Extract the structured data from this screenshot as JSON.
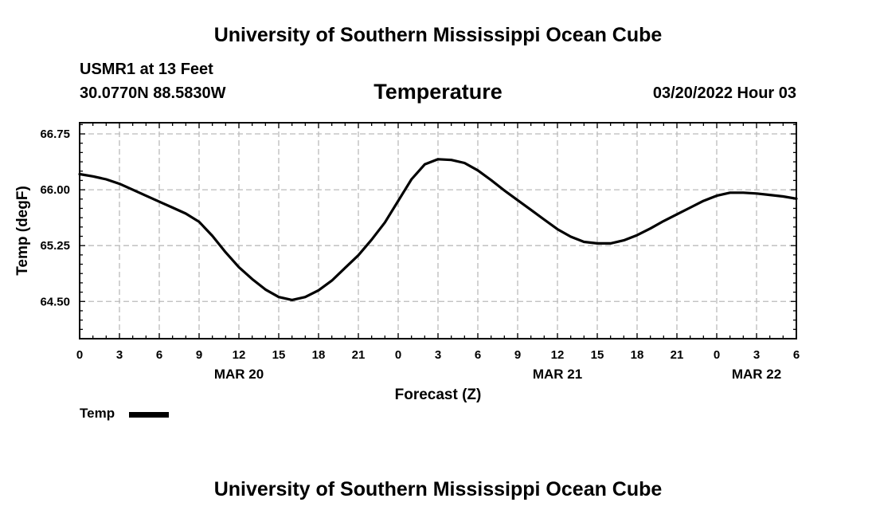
{
  "header": {
    "title": "University of Southern Mississippi Ocean Cube",
    "station": "USMR1 at 13 Feet",
    "coords": "30.0770N  88.5830W",
    "chart_title": "Temperature",
    "datetime": "03/20/2022 Hour 03"
  },
  "footer": {
    "title": "University of Southern Mississippi Ocean Cube"
  },
  "legend": {
    "label": "Temp",
    "color": "#000000"
  },
  "chart_data": {
    "type": "line",
    "title": "Temperature",
    "xlabel": "Forecast (Z)",
    "ylabel": "Temp (degF)",
    "xlim": [
      0,
      54
    ],
    "ylim": [
      64.0,
      66.9
    ],
    "x_ticks": [
      0,
      3,
      6,
      9,
      12,
      15,
      18,
      21,
      24,
      27,
      30,
      33,
      36,
      39,
      42,
      45,
      48,
      51,
      54
    ],
    "x_tick_labels": [
      "0",
      "3",
      "6",
      "9",
      "12",
      "15",
      "18",
      "21",
      "0",
      "3",
      "6",
      "9",
      "12",
      "15",
      "18",
      "21",
      "0",
      "3",
      "6"
    ],
    "date_labels": [
      {
        "x": 12,
        "label": "MAR 20"
      },
      {
        "x": 36,
        "label": "MAR 21"
      },
      {
        "x": 51,
        "label": "MAR 22"
      }
    ],
    "y_ticks": [
      64.5,
      65.25,
      66.0,
      66.75
    ],
    "y_tick_labels": [
      "64.50",
      "65.25",
      "66.00",
      "66.75"
    ],
    "grid": true,
    "series": [
      {
        "name": "Temp",
        "color": "#000000",
        "x": [
          0,
          1,
          2,
          3,
          4,
          5,
          6,
          7,
          8,
          9,
          10,
          11,
          12,
          13,
          14,
          15,
          16,
          17,
          18,
          19,
          20,
          21,
          22,
          23,
          24,
          25,
          26,
          27,
          28,
          29,
          30,
          31,
          32,
          33,
          34,
          35,
          36,
          37,
          38,
          39,
          40,
          41,
          42,
          43,
          44,
          45,
          46,
          47,
          48,
          49,
          50,
          51,
          52,
          53,
          54
        ],
        "y": [
          66.21,
          66.18,
          66.14,
          66.08,
          66.0,
          65.92,
          65.84,
          65.76,
          65.68,
          65.57,
          65.38,
          65.16,
          64.96,
          64.8,
          64.66,
          64.56,
          64.52,
          64.56,
          64.65,
          64.78,
          64.95,
          65.12,
          65.33,
          65.56,
          65.85,
          66.14,
          66.34,
          66.41,
          66.4,
          66.36,
          66.26,
          66.13,
          65.99,
          65.86,
          65.73,
          65.6,
          65.47,
          65.37,
          65.3,
          65.28,
          65.28,
          65.32,
          65.39,
          65.48,
          65.58,
          65.67,
          65.76,
          65.85,
          65.92,
          65.96,
          65.96,
          65.95,
          65.93,
          65.91,
          65.88
        ]
      }
    ]
  }
}
